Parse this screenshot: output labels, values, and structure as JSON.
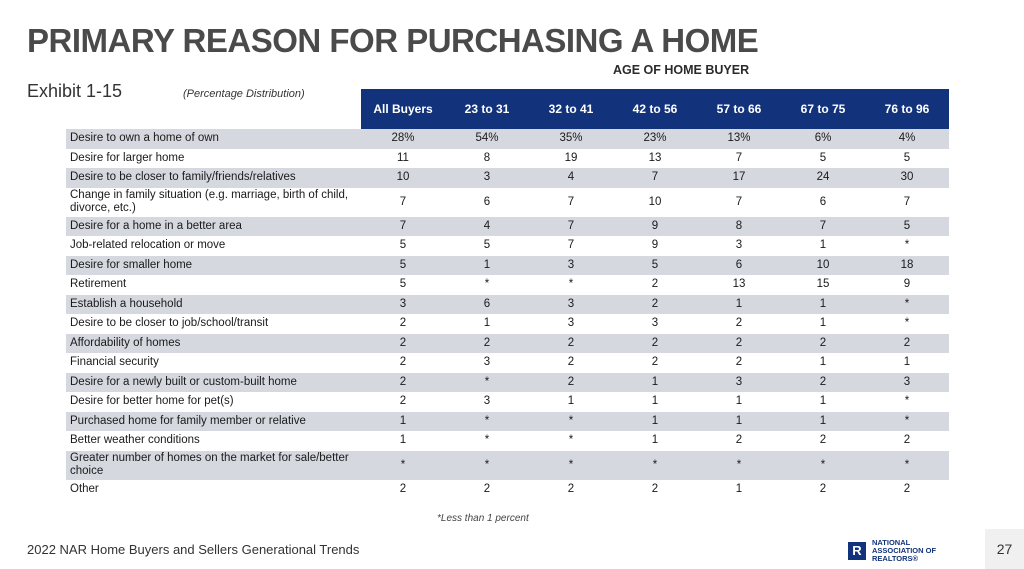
{
  "title": "PRIMARY REASON FOR PURCHASING A HOME",
  "group_label": "AGE OF HOME BUYER",
  "exhibit": "Exhibit 1-15",
  "subtitle": "(Percentage Distribution)",
  "columns": [
    "All Buyers",
    "23 to 31",
    "32 to 41",
    "42 to 56",
    "57 to 66",
    "67 to 75",
    "76 to 96"
  ],
  "rows": [
    {
      "label": "Desire to own a home of own",
      "values": [
        "28%",
        "54%",
        "35%",
        "23%",
        "13%",
        "6%",
        "4%"
      ]
    },
    {
      "label": "Desire for larger home",
      "values": [
        "11",
        "8",
        "19",
        "13",
        "7",
        "5",
        "5"
      ]
    },
    {
      "label": "Desire to be closer to family/friends/relatives",
      "values": [
        "10",
        "3",
        "4",
        "7",
        "17",
        "24",
        "30"
      ]
    },
    {
      "label": "Change in family situation (e.g. marriage, birth of child, divorce, etc.)",
      "values": [
        "7",
        "6",
        "7",
        "10",
        "7",
        "6",
        "7"
      ]
    },
    {
      "label": "Desire for a home in a better area",
      "values": [
        "7",
        "4",
        "7",
        "9",
        "8",
        "7",
        "5"
      ]
    },
    {
      "label": "Job-related relocation or move",
      "values": [
        "5",
        "5",
        "7",
        "9",
        "3",
        "1",
        "*"
      ]
    },
    {
      "label": "Desire for smaller home",
      "values": [
        "5",
        "1",
        "3",
        "5",
        "6",
        "10",
        "18"
      ]
    },
    {
      "label": "Retirement",
      "values": [
        "5",
        "*",
        "*",
        "2",
        "13",
        "15",
        "9"
      ]
    },
    {
      "label": "Establish a household",
      "values": [
        "3",
        "6",
        "3",
        "2",
        "1",
        "1",
        "*"
      ]
    },
    {
      "label": "Desire to be closer to job/school/transit",
      "values": [
        "2",
        "1",
        "3",
        "3",
        "2",
        "1",
        "*"
      ]
    },
    {
      "label": "Affordability of homes",
      "values": [
        "2",
        "2",
        "2",
        "2",
        "2",
        "2",
        "2"
      ]
    },
    {
      "label": "Financial security",
      "values": [
        "2",
        "3",
        "2",
        "2",
        "2",
        "1",
        "1"
      ]
    },
    {
      "label": "Desire for a newly built or custom-built home",
      "values": [
        "2",
        "*",
        "2",
        "1",
        "3",
        "2",
        "3"
      ]
    },
    {
      "label": "Desire for better home for pet(s)",
      "values": [
        "2",
        "3",
        "1",
        "1",
        "1",
        "1",
        "*"
      ]
    },
    {
      "label": "Purchased home for family member or relative",
      "values": [
        "1",
        "*",
        "*",
        "1",
        "1",
        "1",
        "*"
      ]
    },
    {
      "label": "Better weather conditions",
      "values": [
        "1",
        "*",
        "*",
        "1",
        "2",
        "2",
        "2"
      ]
    },
    {
      "label": "Greater number of homes on the market for sale/better choice",
      "values": [
        "*",
        "*",
        "*",
        "*",
        "*",
        "*",
        "*"
      ]
    },
    {
      "label": "Other",
      "values": [
        "2",
        "2",
        "2",
        "2",
        "1",
        "2",
        "2"
      ]
    }
  ],
  "footnote": "*Less than 1 percent",
  "source": "2022 NAR Home Buyers and Sellers Generational Trends",
  "logo": {
    "icon": "realtor-r-logo-icon",
    "lines": [
      "NATIONAL",
      "ASSOCIATION OF",
      "REALTORS®"
    ],
    "color": "#12337b"
  },
  "page_number": "27",
  "colors": {
    "header": "#12337b",
    "stripe": "#d6d8df"
  }
}
